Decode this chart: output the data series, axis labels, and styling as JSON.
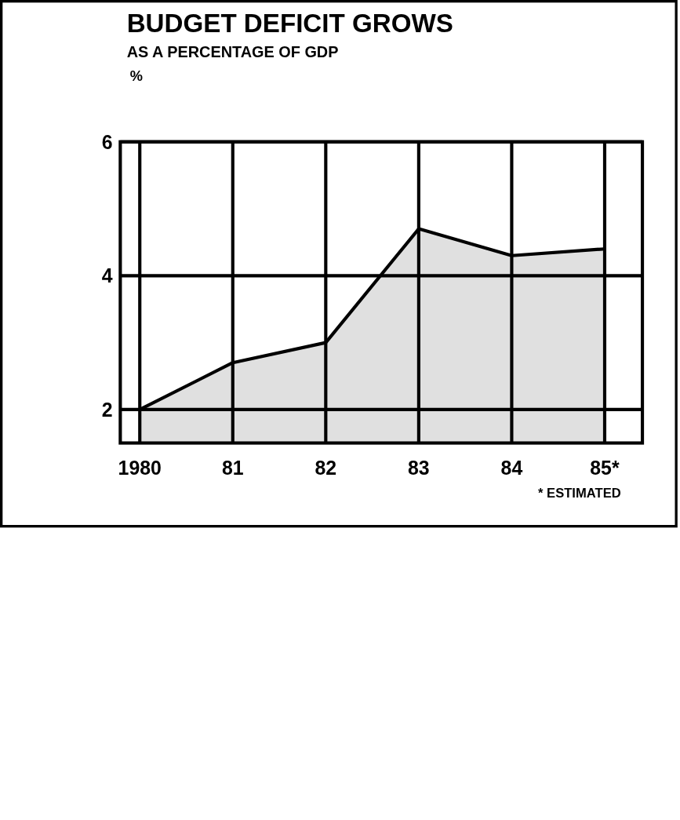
{
  "chart_data": {
    "type": "area",
    "title": "BUDGET DEFICIT GROWS",
    "subtitle": "AS A PERCENTAGE OF GDP",
    "ylabel": "%",
    "categories": [
      "1980",
      "81",
      "82",
      "83",
      "84",
      "85*"
    ],
    "values": [
      2.0,
      2.7,
      3.0,
      4.7,
      4.3,
      4.4
    ],
    "color": "#000000",
    "ylim": [
      1.5,
      6
    ],
    "yticks": [
      2,
      4,
      6
    ],
    "grid": true,
    "annotations": [
      "* ESTIMATED"
    ]
  }
}
